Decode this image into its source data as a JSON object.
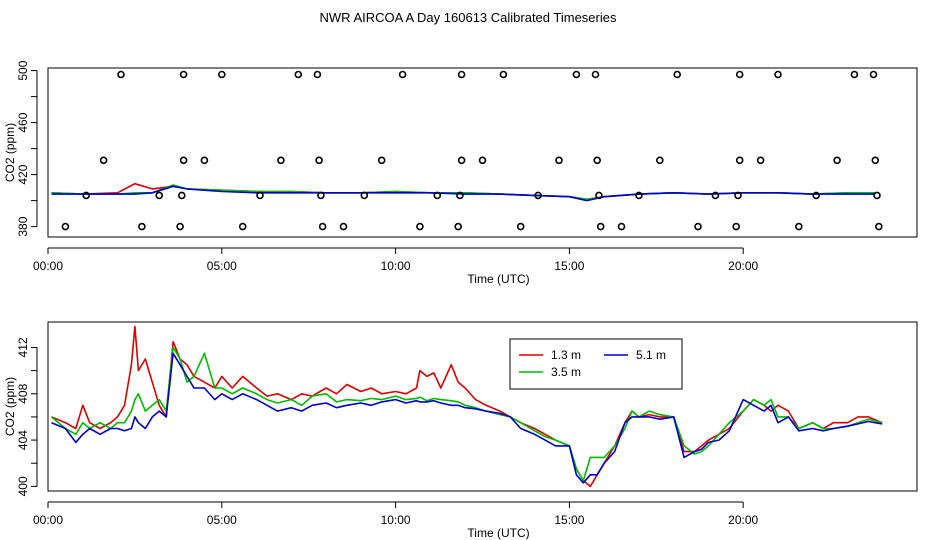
{
  "page": {
    "title": "NWR AIRCOA A  Day 160613  Calibrated Timeseries"
  },
  "chart_data": [
    {
      "type": "line",
      "panel": "top",
      "xlabel": "Time (UTC)",
      "ylabel": "CO2 (ppm)",
      "xlim": [
        0,
        25
      ],
      "ylim": [
        372,
        502
      ],
      "x_ticks": [
        0,
        5,
        10,
        15,
        20
      ],
      "x_tick_labels": [
        "00:00",
        "05:00",
        "10:00",
        "15:00",
        "20:00"
      ],
      "y_ticks": [
        380,
        420,
        460,
        500
      ],
      "y_minor_ticks": [
        400,
        440,
        480
      ],
      "series": [
        {
          "color": "#dd0000",
          "x": [
            0.1,
            1.0,
            2.0,
            2.5,
            3.0,
            3.6,
            4.0,
            5.0,
            6.0,
            7.0,
            8.0,
            9.0,
            10.0,
            11.0,
            12.0,
            13.0,
            14.0,
            15.0,
            15.5,
            16.0,
            17.0,
            18.0,
            19.0,
            20.0,
            21.0,
            22.0,
            23.0,
            23.8
          ],
          "y": [
            406,
            405,
            406,
            413,
            409,
            411,
            409,
            408,
            407,
            407,
            406,
            406,
            407,
            406,
            406,
            405,
            404,
            403,
            401,
            403,
            405,
            406,
            405,
            406,
            406,
            405,
            406,
            406
          ]
        },
        {
          "color": "#00bb00",
          "x": [
            0.1,
            1.0,
            2.0,
            2.5,
            3.0,
            3.6,
            4.0,
            5.0,
            6.0,
            7.0,
            8.0,
            9.0,
            10.0,
            11.0,
            12.0,
            13.0,
            14.0,
            15.0,
            15.5,
            16.0,
            17.0,
            18.0,
            19.0,
            20.0,
            21.0,
            22.0,
            23.0,
            23.8
          ],
          "y": [
            406,
            405,
            405,
            406,
            406,
            412,
            409,
            408,
            407,
            407,
            406,
            406,
            407,
            406,
            406,
            405,
            404,
            403,
            401,
            403,
            405,
            406,
            405,
            406,
            406,
            405,
            406,
            406
          ]
        },
        {
          "color": "#0000cc",
          "x": [
            0.1,
            1.0,
            2.0,
            2.5,
            3.0,
            3.6,
            4.0,
            5.0,
            6.0,
            7.0,
            8.0,
            9.0,
            10.0,
            11.0,
            12.0,
            13.0,
            14.0,
            15.0,
            15.5,
            16.0,
            17.0,
            18.0,
            19.0,
            20.0,
            21.0,
            22.0,
            23.0,
            23.8
          ],
          "y": [
            405,
            405,
            405,
            405,
            406,
            411,
            409,
            407,
            406,
            406,
            406,
            406,
            406,
            406,
            405,
            405,
            404,
            403,
            400,
            403,
            405,
            406,
            405,
            406,
            406,
            405,
            405,
            405
          ]
        }
      ],
      "markers": {
        "style": "open-circle",
        "x": [
          0.5,
          1.1,
          1.6,
          2.1,
          2.7,
          3.2,
          3.8,
          3.85,
          3.9,
          3.9,
          4.5,
          5.0,
          5.6,
          6.1,
          6.7,
          7.2,
          7.75,
          7.8,
          7.85,
          7.9,
          8.5,
          9.1,
          9.6,
          10.2,
          10.7,
          11.2,
          11.8,
          11.85,
          11.9,
          11.9,
          12.5,
          13.1,
          13.6,
          14.1,
          14.7,
          15.2,
          15.75,
          15.8,
          15.85,
          15.9,
          16.5,
          17.0,
          17.6,
          18.1,
          18.7,
          19.2,
          19.8,
          19.85,
          19.9,
          19.9,
          20.5,
          21.0,
          21.6,
          22.1,
          22.7,
          23.2,
          23.75,
          23.8,
          23.85,
          23.9
        ],
        "y": [
          380,
          404,
          431,
          497,
          380,
          404,
          380,
          404,
          431,
          497,
          431,
          497,
          380,
          404,
          431,
          497,
          497,
          431,
          404,
          380,
          380,
          404,
          431,
          497,
          380,
          404,
          380,
          404,
          431,
          497,
          431,
          497,
          380,
          404,
          431,
          497,
          497,
          431,
          404,
          380,
          380,
          404,
          431,
          497,
          380,
          404,
          380,
          404,
          431,
          497,
          431,
          497,
          380,
          404,
          431,
          497,
          497,
          431,
          404,
          380
        ]
      }
    },
    {
      "type": "line",
      "panel": "bottom",
      "xlabel": "Time (UTC)",
      "ylabel": "CO2 (ppm)",
      "xlim": [
        0,
        25
      ],
      "ylim": [
        399.6,
        414.2
      ],
      "x_ticks": [
        0,
        5,
        10,
        15,
        20
      ],
      "x_tick_labels": [
        "00:00",
        "05:00",
        "10:00",
        "15:00",
        "20:00"
      ],
      "y_ticks": [
        400,
        404,
        408,
        412
      ],
      "y_minor_ticks": [
        402,
        406,
        410
      ],
      "legend": {
        "position": "top-center",
        "columns": 2
      },
      "series": [
        {
          "name": "1.3 m",
          "color": "#dd0000",
          "x": [
            0.1,
            0.5,
            0.8,
            1.0,
            1.2,
            1.5,
            1.8,
            2.0,
            2.2,
            2.4,
            2.5,
            2.6,
            2.8,
            3.0,
            3.2,
            3.4,
            3.6,
            3.8,
            4.0,
            4.2,
            4.5,
            4.8,
            5.0,
            5.3,
            5.6,
            6.0,
            6.3,
            6.6,
            7.0,
            7.3,
            7.6,
            8.0,
            8.3,
            8.6,
            9.0,
            9.3,
            9.6,
            10.0,
            10.3,
            10.6,
            10.7,
            10.9,
            11.1,
            11.3,
            11.6,
            11.8,
            12.0,
            12.3,
            12.6,
            13.0,
            13.3,
            13.6,
            14.0,
            14.3,
            14.6,
            15.0,
            15.2,
            15.4,
            15.6,
            15.8,
            16.0,
            16.3,
            16.6,
            16.8,
            17.0,
            17.3,
            17.6,
            18.0,
            18.3,
            18.6,
            18.8,
            19.0,
            19.3,
            19.6,
            20.0,
            20.3,
            20.6,
            20.8,
            21.0,
            21.3,
            21.6,
            22.0,
            22.3,
            22.6,
            23.0,
            23.3,
            23.6,
            24.0
          ],
          "y": [
            406.0,
            405.5,
            405.0,
            407.0,
            405.5,
            405.0,
            405.5,
            406.0,
            407.0,
            410.5,
            413.8,
            410.0,
            411.0,
            409.0,
            407.0,
            406.0,
            412.5,
            411.0,
            410.5,
            409.5,
            409.0,
            408.5,
            409.5,
            408.5,
            409.5,
            408.5,
            407.8,
            408.0,
            407.5,
            408.0,
            407.8,
            408.5,
            408.0,
            408.8,
            408.2,
            408.5,
            408.0,
            408.2,
            408.0,
            408.5,
            410.0,
            409.5,
            409.8,
            408.5,
            410.5,
            409.0,
            408.5,
            407.5,
            407.0,
            406.5,
            406.0,
            405.5,
            405.0,
            404.5,
            404.0,
            403.5,
            401.5,
            400.5,
            400.0,
            401.0,
            402.0,
            403.5,
            405.5,
            406.5,
            406.0,
            406.2,
            406.0,
            406.0,
            403.0,
            403.0,
            403.5,
            404.0,
            404.5,
            405.0,
            406.5,
            407.5,
            407.0,
            406.5,
            407.0,
            406.5,
            405.0,
            405.5,
            405.0,
            405.5,
            405.5,
            406.0,
            406.0,
            405.5
          ]
        },
        {
          "name": "3.5 m",
          "color": "#00bb00",
          "x": [
            0.1,
            0.5,
            0.8,
            1.0,
            1.2,
            1.5,
            1.8,
            2.0,
            2.2,
            2.4,
            2.5,
            2.6,
            2.8,
            3.0,
            3.2,
            3.4,
            3.6,
            3.8,
            4.0,
            4.2,
            4.5,
            4.8,
            5.0,
            5.3,
            5.6,
            6.0,
            6.3,
            6.6,
            7.0,
            7.3,
            7.6,
            8.0,
            8.3,
            8.6,
            9.0,
            9.3,
            9.6,
            10.0,
            10.3,
            10.6,
            10.7,
            10.9,
            11.1,
            11.3,
            11.6,
            11.8,
            12.0,
            12.3,
            12.6,
            13.0,
            13.3,
            13.6,
            14.0,
            14.3,
            14.6,
            15.0,
            15.2,
            15.4,
            15.6,
            15.8,
            16.0,
            16.3,
            16.6,
            16.8,
            17.0,
            17.3,
            17.6,
            18.0,
            18.3,
            18.6,
            18.8,
            19.0,
            19.3,
            19.6,
            20.0,
            20.3,
            20.6,
            20.8,
            21.0,
            21.3,
            21.6,
            22.0,
            22.3,
            22.6,
            23.0,
            23.3,
            23.6,
            24.0
          ],
          "y": [
            406.0,
            405.0,
            404.5,
            405.5,
            405.0,
            405.5,
            405.0,
            405.5,
            405.5,
            406.5,
            407.5,
            408.0,
            406.5,
            407.0,
            407.5,
            406.5,
            412.0,
            411.0,
            409.0,
            409.5,
            411.5,
            408.5,
            408.5,
            408.0,
            408.5,
            408.0,
            407.5,
            407.2,
            407.5,
            407.0,
            407.8,
            408.0,
            407.3,
            407.5,
            407.4,
            407.6,
            407.5,
            407.8,
            407.5,
            407.6,
            407.7,
            407.4,
            407.6,
            407.5,
            407.4,
            407.3,
            407.0,
            406.8,
            406.5,
            406.2,
            406.0,
            405.5,
            404.8,
            404.3,
            404.0,
            403.5,
            401.5,
            400.5,
            402.5,
            402.5,
            402.5,
            403.5,
            405.0,
            406.5,
            406.0,
            406.5,
            406.2,
            406.0,
            403.5,
            402.8,
            403.0,
            403.5,
            404.5,
            405.5,
            406.5,
            407.5,
            407.0,
            407.5,
            406.0,
            406.0,
            405.0,
            405.5,
            405.0,
            405.0,
            405.2,
            405.5,
            405.8,
            405.5
          ]
        },
        {
          "name": "5.1 m",
          "color": "#0000cc",
          "x": [
            0.1,
            0.5,
            0.8,
            1.0,
            1.2,
            1.5,
            1.8,
            2.0,
            2.2,
            2.4,
            2.5,
            2.6,
            2.8,
            3.0,
            3.2,
            3.4,
            3.6,
            3.8,
            4.0,
            4.2,
            4.5,
            4.8,
            5.0,
            5.3,
            5.6,
            6.0,
            6.3,
            6.6,
            7.0,
            7.3,
            7.6,
            8.0,
            8.3,
            8.6,
            9.0,
            9.3,
            9.6,
            10.0,
            10.3,
            10.6,
            10.7,
            10.9,
            11.1,
            11.3,
            11.6,
            11.8,
            12.0,
            12.3,
            12.6,
            13.0,
            13.3,
            13.6,
            14.0,
            14.3,
            14.6,
            15.0,
            15.2,
            15.4,
            15.6,
            15.8,
            16.0,
            16.3,
            16.6,
            16.8,
            17.0,
            17.3,
            17.6,
            18.0,
            18.3,
            18.6,
            18.8,
            19.0,
            19.3,
            19.6,
            20.0,
            20.3,
            20.6,
            20.8,
            21.0,
            21.3,
            21.6,
            22.0,
            22.3,
            22.6,
            23.0,
            23.3,
            23.6,
            24.0
          ],
          "y": [
            405.5,
            405.0,
            403.8,
            404.5,
            405.0,
            404.5,
            405.0,
            405.0,
            404.8,
            405.0,
            406.0,
            405.5,
            405.0,
            406.0,
            406.5,
            406.0,
            411.5,
            410.5,
            409.5,
            408.5,
            408.5,
            407.5,
            408.0,
            407.5,
            408.0,
            407.5,
            407.0,
            406.5,
            406.8,
            406.5,
            407.0,
            407.2,
            406.8,
            407.0,
            407.2,
            407.0,
            407.3,
            407.5,
            407.2,
            407.4,
            407.3,
            407.3,
            407.4,
            407.2,
            407.0,
            407.0,
            406.8,
            406.7,
            406.5,
            406.3,
            406.0,
            405.0,
            404.5,
            404.0,
            403.5,
            403.5,
            401.0,
            400.3,
            401.0,
            401.0,
            402.0,
            403.0,
            405.5,
            406.0,
            406.0,
            406.0,
            405.8,
            406.0,
            402.5,
            403.0,
            403.2,
            403.8,
            404.0,
            404.8,
            407.5,
            407.0,
            406.5,
            407.0,
            405.5,
            406.0,
            404.8,
            405.0,
            404.8,
            405.0,
            405.2,
            405.4,
            405.6,
            405.4
          ]
        }
      ]
    }
  ]
}
